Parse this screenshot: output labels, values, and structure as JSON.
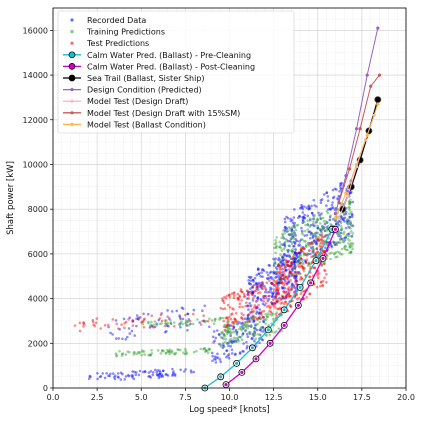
{
  "chart_data": {
    "type": "scatter",
    "xlabel": "Log speed* [knots]",
    "ylabel": "Shaft power [kW]",
    "xlim": [
      0,
      20
    ],
    "ylim": [
      0,
      17000
    ],
    "xticks": [
      "0.0",
      "2.5",
      "5.0",
      "7.5",
      "10.0",
      "12.5",
      "15.0",
      "17.5",
      "20.0"
    ],
    "yticks": [
      "0",
      "2000",
      "4000",
      "6000",
      "8000",
      "10000",
      "12000",
      "14000",
      "16000"
    ],
    "grid": true,
    "legend_position": "top-left",
    "series": [
      {
        "name": "Recorded Data",
        "kind": "scatter",
        "color": "#0000ff",
        "clusters": [
          {
            "x": [
              2,
              8
            ],
            "y": [
              300,
              900
            ],
            "n": 80
          },
          {
            "x": [
              3,
              9
            ],
            "y": [
              2000,
              3800
            ],
            "n": 60
          },
          {
            "x": [
              9,
              12
            ],
            "y": [
              1000,
              3500
            ],
            "n": 120
          },
          {
            "x": [
              11,
              14
            ],
            "y": [
              3000,
              6500
            ],
            "n": 260
          },
          {
            "x": [
              13,
              17
            ],
            "y": [
              5000,
              9500
            ],
            "n": 320
          }
        ]
      },
      {
        "name": "Training Predictions",
        "kind": "scatter",
        "color": "#2ca02c",
        "clusters": [
          {
            "x": [
              3.5,
              9
            ],
            "y": [
              1400,
              1800
            ],
            "n": 70
          },
          {
            "x": [
              5,
              10
            ],
            "y": [
              2700,
              3200
            ],
            "n": 50
          },
          {
            "x": [
              9.5,
              13
            ],
            "y": [
              1800,
              3500
            ],
            "n": 140
          },
          {
            "x": [
              12.5,
              17
            ],
            "y": [
              4500,
              8500
            ],
            "n": 320
          }
        ]
      },
      {
        "name": "Test Predictions",
        "kind": "scatter",
        "color": "#ff0000",
        "clusters": [
          {
            "x": [
              1,
              9
            ],
            "y": [
              2500,
              3400
            ],
            "n": 50
          },
          {
            "x": [
              9.5,
              13.5
            ],
            "y": [
              2500,
              5200
            ],
            "n": 170
          },
          {
            "x": [
              12.5,
              15.5
            ],
            "y": [
              3000,
              7000
            ],
            "n": 240
          }
        ]
      },
      {
        "name": "Calm Water Pred. (Ballast) - Pre-Cleaning",
        "kind": "line-markers",
        "color": "#17becf",
        "x": [
          8.6,
          9.5,
          10.4,
          11.3,
          12.2,
          13.1,
          14.0,
          14.9,
          15.8
        ],
        "y": [
          0,
          500,
          1100,
          1800,
          2600,
          3500,
          4500,
          5700,
          7100
        ]
      },
      {
        "name": "Calm Water Pred. (Ballast) - Post-Cleaning",
        "kind": "line-markers",
        "color": "#cc00cc",
        "x": [
          9.8,
          10.7,
          11.5,
          12.3,
          13.1,
          13.9,
          14.6,
          15.3,
          16.0
        ],
        "y": [
          150,
          700,
          1300,
          2000,
          2800,
          3700,
          4700,
          5800,
          7100
        ]
      },
      {
        "name": "Sea Trail (Ballast, Sister Ship)",
        "kind": "line-markers",
        "color": "#000000",
        "x": [
          16.4,
          16.9,
          17.4,
          17.9,
          18.4
        ],
        "y": [
          8000,
          9000,
          10200,
          11500,
          12900
        ]
      },
      {
        "name": "Design Condition (Predicted)",
        "kind": "line-markers",
        "color": "#9467bd",
        "x": [
          16.0,
          16.6,
          17.2,
          17.8,
          18.4
        ],
        "y": [
          7800,
          9500,
          11600,
          14000,
          16100
        ]
      },
      {
        "name": "Model Test (Design Draft)",
        "kind": "line-markers",
        "color": "#f7b6d2",
        "x": [
          16.2,
          16.7,
          17.2,
          17.7,
          18.2
        ],
        "y": [
          7600,
          8600,
          9900,
          11100,
          12200
        ]
      },
      {
        "name": "Model Test (Design Draft with 15%SM)",
        "kind": "line-markers",
        "color": "#c85a5a",
        "x": [
          16.2,
          16.8,
          17.4,
          18.0,
          18.5
        ],
        "y": [
          8300,
          9800,
          11600,
          13500,
          14000
        ]
      },
      {
        "name": "Model Test (Ballast Condition)",
        "kind": "line-markers",
        "color": "#ffb347",
        "x": [
          16.0,
          16.6,
          17.2,
          17.8,
          18.4
        ],
        "y": [
          7600,
          8700,
          10000,
          11300,
          12700
        ]
      }
    ]
  }
}
